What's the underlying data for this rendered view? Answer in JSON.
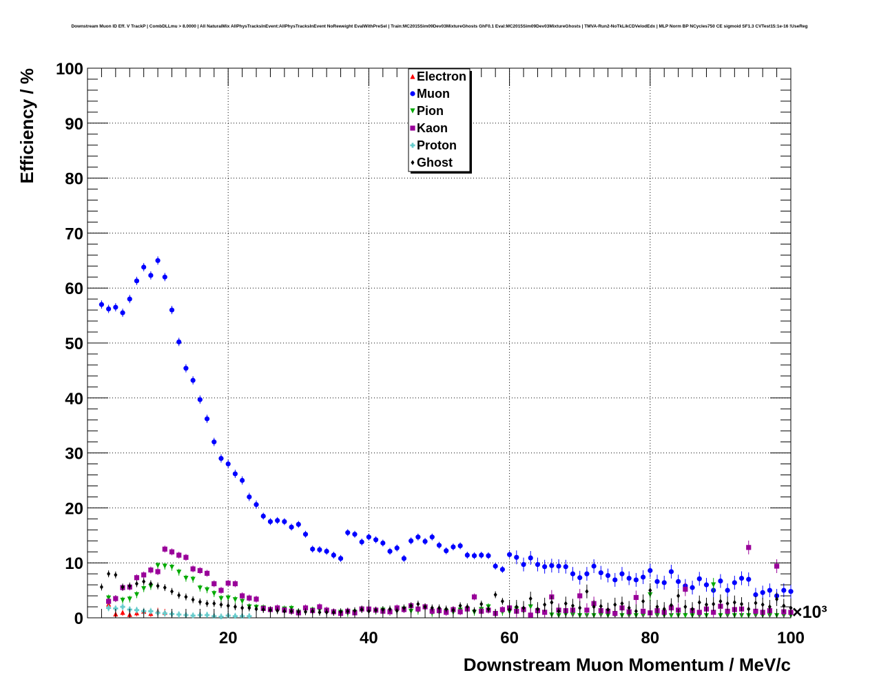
{
  "chart_data": {
    "type": "scatter",
    "title": "Downstream Muon ID Eff. V TrackP | CombDLLmu > 8.0000 | All NaturalMix AllPhysTracksInEvent:AllPhysTracksInEvent NoReweight EvalWithPreSel | Train:MC2015Sim09Dev03MixtureGhosts GhF0.1 Eval:MC2015Sim09Dev03MixtureGhosts | TMVA-Run2-NoTkLikCDVelodEdx | MLP Norm BP NCycles750 CE sigmoid SF1.3 CVTest15:1e-16 !UseReg",
    "xlabel": "Downstream Muon Momentum / MeV/c",
    "ylabel": "Efficiency / %",
    "x_multiplier": "×10³",
    "xlim": [
      0,
      100
    ],
    "ylim": [
      0,
      100
    ],
    "x_ticks": [
      20,
      40,
      60,
      80,
      100
    ],
    "y_ticks": [
      0,
      10,
      20,
      30,
      40,
      50,
      60,
      70,
      80,
      90,
      100
    ],
    "grid": true,
    "legend_position": "top-center",
    "series": [
      {
        "name": "Electron",
        "color": "#ff0000",
        "marker": "triangle-up",
        "x": [
          3,
          4,
          5,
          6,
          7,
          8,
          9,
          10,
          11
        ],
        "y": [
          2.5,
          0.7,
          1.0,
          0.6,
          0.9,
          1.2,
          0.8,
          1.2,
          1.0
        ]
      },
      {
        "name": "Muon",
        "color": "#0000ff",
        "marker": "circle",
        "x": [
          2,
          3,
          4,
          5,
          6,
          7,
          8,
          9,
          10,
          11,
          12,
          13,
          14,
          15,
          16,
          17,
          18,
          19,
          20,
          21,
          22,
          23,
          24,
          25,
          26,
          27,
          28,
          29,
          30,
          31,
          32,
          33,
          34,
          35,
          36,
          37,
          38,
          39,
          40,
          41,
          42,
          43,
          44,
          45,
          46,
          47,
          48,
          49,
          50,
          51,
          52,
          53,
          54,
          55,
          56,
          57,
          58,
          59,
          60,
          61,
          62,
          63,
          64,
          65,
          66,
          67,
          68,
          69,
          70,
          71,
          72,
          73,
          74,
          75,
          76,
          77,
          78,
          79,
          80,
          81,
          82,
          83,
          84,
          85,
          86,
          87,
          88,
          89,
          90,
          91,
          92,
          93,
          94,
          95,
          96,
          97,
          98,
          99,
          100
        ],
        "y": [
          57,
          56.2,
          56.5,
          55.5,
          58,
          61.3,
          63.8,
          62.3,
          65,
          62,
          56,
          50.2,
          45.4,
          43.2,
          39.7,
          36.2,
          32,
          29,
          28,
          26.2,
          25,
          22,
          20.6,
          18.5,
          17.5,
          17.7,
          17.5,
          16.5,
          17,
          15.2,
          12.5,
          12.4,
          12.1,
          11.4,
          10.8,
          15.5,
          15.2,
          13.8,
          14.7,
          14.2,
          13.6,
          12.1,
          12.7,
          10.8,
          14,
          14.7,
          13.9,
          14.7,
          13.2,
          12.2,
          12.9,
          13.1,
          11.4,
          11.3,
          11.4,
          11.3,
          9.4,
          8.8,
          11.5,
          11,
          9.7,
          10.9,
          9.7,
          9.3,
          9.5,
          9.4,
          9.3,
          8,
          7.3,
          8,
          9.4,
          8.2,
          7.7,
          6.9,
          8,
          7.2,
          6.9,
          7.4,
          8.6,
          6.6,
          6.4,
          8.4,
          6.6,
          5.8,
          5.5,
          7.1,
          6,
          5,
          6.7,
          5,
          6.4,
          7.2,
          7,
          4.2,
          4.6,
          5,
          4,
          5,
          4.8
        ]
      },
      {
        "name": "Pion",
        "color": "#00aa00",
        "marker": "triangle-down",
        "x": [
          3,
          4,
          5,
          6,
          7,
          8,
          9,
          10,
          11,
          12,
          13,
          14,
          15,
          16,
          17,
          18,
          19,
          20,
          21,
          22,
          23,
          24,
          25,
          26,
          27,
          28,
          29,
          30,
          31,
          32,
          33,
          34,
          35,
          36,
          37,
          38,
          39,
          40,
          41,
          42,
          43,
          44,
          45,
          46,
          47,
          48,
          49,
          50,
          51,
          52,
          53,
          54,
          55,
          56,
          57,
          58,
          59,
          60,
          61,
          62,
          63,
          64,
          65,
          66,
          67,
          68,
          69,
          70,
          71,
          72,
          73,
          74,
          75,
          76,
          77,
          78,
          79,
          80,
          81,
          82,
          83,
          84,
          85,
          86,
          87,
          88,
          89,
          90,
          91,
          92,
          93,
          94,
          95,
          96,
          97,
          98,
          99,
          100
        ],
        "y": [
          3.6,
          3.5,
          3.2,
          3.4,
          4.2,
          5.3,
          5.7,
          9.5,
          9.4,
          9.2,
          8.3,
          7.2,
          7.0,
          5.4,
          5.1,
          4.4,
          3.5,
          3.6,
          3.3,
          3.0,
          2.0,
          1.9,
          1.8,
          1.5,
          1.4,
          1.6,
          1.7,
          1.0,
          1.5,
          1.4,
          1.4,
          1.2,
          1.0,
          1.0,
          0.8,
          1.0,
          1.6,
          1.3,
          1.2,
          1.4,
          1.0,
          1.2,
          1.6,
          1.2,
          1.2,
          1.8,
          0.8,
          1.0,
          1.2,
          1.0,
          1.4,
          1.5,
          1.0,
          1.5,
          2.0,
          0.8,
          1.0,
          1.1,
          1.6,
          1.2,
          2.0,
          1.0,
          1.0,
          0.5,
          0.4,
          0.6,
          0.5,
          0.4,
          0.4,
          0.4,
          0.5,
          0.4,
          0.4,
          0.4,
          0.4,
          0.4,
          0.4,
          4.2,
          0.4,
          0.4,
          0.4,
          0.4,
          0.4,
          0.4,
          0.4,
          0.4,
          6.0,
          0.4,
          0.4,
          0.4,
          0.4,
          0.4,
          0.4,
          0.4,
          0.4,
          0.4,
          0.4,
          0.4
        ]
      },
      {
        "name": "Kaon",
        "color": "#990099",
        "marker": "square",
        "x": [
          3,
          4,
          5,
          6,
          7,
          8,
          9,
          10,
          11,
          12,
          13,
          14,
          15,
          16,
          17,
          18,
          19,
          20,
          21,
          22,
          23,
          24,
          25,
          26,
          27,
          28,
          29,
          30,
          31,
          32,
          33,
          34,
          35,
          36,
          37,
          38,
          39,
          40,
          41,
          42,
          43,
          44,
          45,
          46,
          47,
          48,
          49,
          50,
          51,
          52,
          53,
          54,
          55,
          56,
          57,
          58,
          59,
          60,
          61,
          62,
          63,
          64,
          65,
          66,
          67,
          68,
          69,
          70,
          71,
          72,
          73,
          74,
          75,
          76,
          77,
          78,
          79,
          80,
          81,
          82,
          83,
          84,
          85,
          86,
          87,
          88,
          89,
          90,
          91,
          92,
          93,
          94,
          95,
          96,
          97,
          98,
          99,
          100
        ],
        "y": [
          3.0,
          3.5,
          5.5,
          5.6,
          7.3,
          7.8,
          8.7,
          8.4,
          12.5,
          12.0,
          11.4,
          11.0,
          8.9,
          8.6,
          8.1,
          6.2,
          5.0,
          6.3,
          6.2,
          4.0,
          3.6,
          3.4,
          1.7,
          1.5,
          1.8,
          1.4,
          1.2,
          0.9,
          1.8,
          1.3,
          2.0,
          1.4,
          1.1,
          0.8,
          1.2,
          0.9,
          1.6,
          1.6,
          1.4,
          1.2,
          1.1,
          1.8,
          1.5,
          2.2,
          1.6,
          2.0,
          1.2,
          1.3,
          1.0,
          1.5,
          1.1,
          1.6,
          3.8,
          1.2,
          1.4,
          0.8,
          1.5,
          1.8,
          1.2,
          1.5,
          0.5,
          1.3,
          1.0,
          3.8,
          1.4,
          1.3,
          1.4,
          4.0,
          1.4,
          2.6,
          1.3,
          1.2,
          0.8,
          1.8,
          1.1,
          3.7,
          1.2,
          0.9,
          1.3,
          1.0,
          1.8,
          1.4,
          5.2,
          1.3,
          1.0,
          1.6,
          1.0,
          2.1,
          1.2,
          1.5,
          1.6,
          12.8,
          1.2,
          1.0,
          1.3,
          9.4,
          1.1,
          1.0
        ]
      },
      {
        "name": "Proton",
        "color": "#66cccc",
        "marker": "cross",
        "x": [
          3,
          4,
          5,
          6,
          7,
          8,
          9,
          10,
          11,
          12,
          13,
          14,
          15,
          16,
          17,
          18,
          19,
          20,
          21,
          22,
          23
        ],
        "y": [
          1.8,
          1.7,
          2.0,
          1.5,
          1.4,
          1.2,
          1.2,
          0.9,
          0.8,
          0.7,
          0.6,
          0.5,
          0.4,
          0.5,
          0.5,
          0.3,
          0.2,
          0.4,
          0.3,
          0.3,
          0.3
        ]
      },
      {
        "name": "Ghost",
        "color": "#000000",
        "marker": "diamond",
        "x": [
          2,
          3,
          4,
          5,
          6,
          7,
          8,
          9,
          10,
          11,
          12,
          13,
          14,
          15,
          16,
          17,
          18,
          19,
          20,
          21,
          22,
          23,
          24,
          25,
          26,
          27,
          28,
          29,
          30,
          31,
          32,
          33,
          34,
          35,
          36,
          37,
          38,
          39,
          40,
          41,
          42,
          43,
          44,
          45,
          46,
          47,
          48,
          49,
          50,
          51,
          52,
          53,
          54,
          55,
          56,
          57,
          58,
          59,
          60,
          61,
          62,
          63,
          64,
          65,
          66,
          67,
          68,
          69,
          70,
          71,
          72,
          73,
          74,
          75,
          76,
          77,
          78,
          79,
          80,
          81,
          82,
          83,
          84,
          85,
          86,
          87,
          88,
          89,
          90,
          91,
          92,
          93,
          94,
          95,
          96,
          97,
          98,
          99,
          100
        ],
        "y": [
          5.6,
          8.0,
          7.8,
          5.6,
          5.8,
          6.2,
          6.6,
          6.2,
          5.8,
          5.5,
          4.8,
          4.1,
          3.8,
          3.3,
          2.9,
          2.6,
          2.6,
          2.4,
          2.2,
          2.0,
          1.8,
          1.8,
          1.6,
          1.5,
          1.4,
          1.3,
          1.2,
          1.2,
          1.1,
          1.1,
          1.2,
          1.0,
          1.0,
          1.0,
          1.1,
          1.2,
          1.3,
          1.5,
          1.2,
          1.4,
          1.5,
          1.6,
          1.3,
          1.8,
          2.2,
          2.5,
          2.0,
          1.8,
          1.8,
          1.6,
          1.4,
          2.2,
          2.0,
          1.3,
          2.5,
          1.6,
          4.2,
          3.0,
          1.5,
          2.0,
          1.8,
          3.5,
          1.6,
          2.4,
          2.8,
          1.2,
          2.6,
          2.2,
          1.8,
          4.8,
          2.0,
          2.1,
          1.5,
          2.4,
          2.6,
          1.8,
          1.2,
          3.0,
          5.0,
          2.0,
          1.6,
          2.3,
          4.0,
          2.0,
          1.6,
          2.8,
          2.4,
          2.5,
          3.0,
          2.6,
          2.8,
          2.5,
          1.6,
          2.7,
          2.4,
          2.0,
          3.4,
          2.2,
          1.8
        ]
      }
    ]
  }
}
